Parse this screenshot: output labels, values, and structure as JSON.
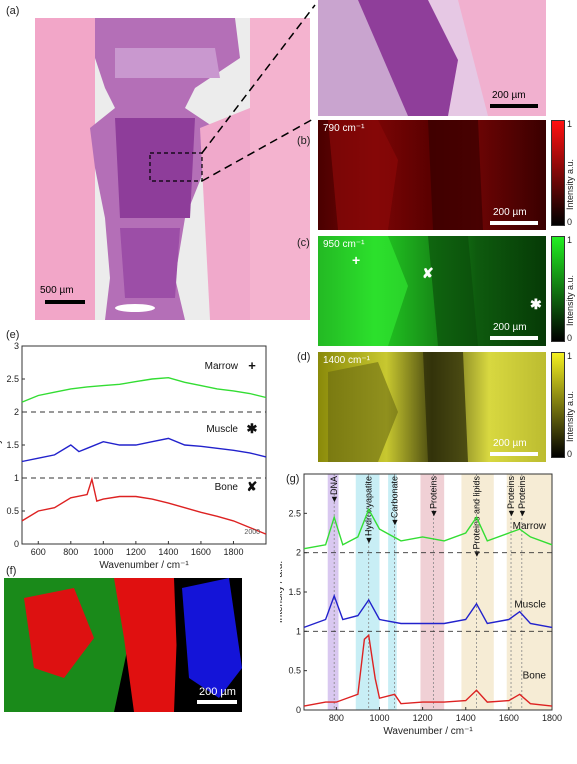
{
  "panel_labels": {
    "a": "(a)",
    "b": "(b)",
    "c": "(c)",
    "d": "(d)",
    "e": "(e)",
    "f": "(f)",
    "g": "(g)"
  },
  "scale_bars": {
    "a_main": "500 µm",
    "a_zoom": "200 µm",
    "b": "200 µm",
    "c": "200 µm",
    "d": "200 µm",
    "f": "200 µm"
  },
  "map_labels": {
    "b": "790 cm⁻¹",
    "c": "950 cm⁻¹",
    "d": "1400 cm⁻¹"
  },
  "colorbar": {
    "label": "Intensity a.u.",
    "max": "1",
    "min": "0",
    "colors": {
      "b": "#e00000",
      "c": "#22dd22",
      "d": "#e8e000"
    }
  },
  "markers": {
    "marrow": "+",
    "muscle": "✱",
    "bone": "✘"
  },
  "chart_data": [
    {
      "id": "e",
      "type": "line",
      "xlabel": "Wavenumber / cm⁻¹",
      "ylabel": "Intensity / a.u.",
      "xlim": [
        500,
        2000
      ],
      "ylim": [
        0,
        3
      ],
      "x_ticks": [
        "600",
        "800",
        "1000",
        "1200",
        "1400",
        "1600",
        "1800"
      ],
      "y_ticks": [
        "0",
        "0.5",
        "1",
        "1.5",
        "2",
        "2.5",
        "3"
      ],
      "offset_lines": [
        0,
        1,
        2
      ],
      "extra_tick": "2000",
      "series": [
        {
          "name": "Marrow",
          "color": "#33dd33",
          "x": [
            500,
            600,
            700,
            800,
            900,
            1000,
            1100,
            1200,
            1300,
            1400,
            1500,
            1600,
            1700,
            1800,
            1900,
            2000
          ],
          "y": [
            2.15,
            2.25,
            2.3,
            2.35,
            2.38,
            2.4,
            2.42,
            2.46,
            2.5,
            2.52,
            2.45,
            2.4,
            2.35,
            2.32,
            2.28,
            2.22
          ]
        },
        {
          "name": "Muscle",
          "color": "#2222cc",
          "x": [
            500,
            600,
            700,
            800,
            850,
            900,
            1000,
            1100,
            1200,
            1300,
            1400,
            1500,
            1600,
            1700,
            1800,
            1900,
            2000
          ],
          "y": [
            1.25,
            1.3,
            1.35,
            1.5,
            1.4,
            1.45,
            1.55,
            1.5,
            1.5,
            1.55,
            1.6,
            1.5,
            1.48,
            1.45,
            1.42,
            1.38,
            1.32
          ]
        },
        {
          "name": "Bone",
          "color": "#dd2222",
          "x": [
            500,
            600,
            700,
            800,
            900,
            930,
            960,
            1000,
            1100,
            1200,
            1300,
            1400,
            1500,
            1600,
            1700,
            1800,
            1900,
            2000
          ],
          "y": [
            0.35,
            0.5,
            0.55,
            0.7,
            0.75,
            0.98,
            0.65,
            0.68,
            0.72,
            0.72,
            0.68,
            0.62,
            0.55,
            0.48,
            0.42,
            0.35,
            0.25,
            0.15
          ]
        }
      ],
      "annotations": [
        "Marrow",
        "Muscle",
        "Bone"
      ]
    },
    {
      "id": "g",
      "type": "line",
      "xlabel": "Wavenumber / cm⁻¹",
      "ylabel": "Intensity / a.u.",
      "xlim": [
        650,
        1800
      ],
      "ylim": [
        0,
        3
      ],
      "x_ticks": [
        "800",
        "1000",
        "1200",
        "1400",
        "1600",
        "1800"
      ],
      "y_ticks": [
        "0",
        "0.5",
        "1",
        "1.5",
        "2",
        "2.5"
      ],
      "offset_lines": [
        0,
        1,
        2
      ],
      "bands": [
        {
          "label": "DNA",
          "x": [
            760,
            810
          ],
          "color": "#d9c8f0",
          "peak": 790
        },
        {
          "label": "Hydroxyapatite",
          "x": [
            890,
            1000
          ],
          "color": "#c8eef5",
          "peak": 950
        },
        {
          "label": "Carbonate",
          "x": [
            1040,
            1080
          ],
          "color": "#c8eef5",
          "peak": 1070
        },
        {
          "label": "Proteins",
          "x": [
            1190,
            1300
          ],
          "color": "#f0d0d5",
          "peak": 1250
        },
        {
          "label": "Proteins and lipids",
          "x": [
            1380,
            1530
          ],
          "color": "#f6ecd5",
          "peak": 1450
        },
        {
          "label": "Proteins",
          "x": [
            1590,
            1640
          ],
          "color": "#f6ecd5",
          "peak": 1610
        },
        {
          "label": "Proteins",
          "x": [
            1640,
            1800
          ],
          "color": "#f6ecd5",
          "peak": 1660
        }
      ],
      "series": [
        {
          "name": "Marrow",
          "color": "#33dd33",
          "x": [
            650,
            750,
            790,
            830,
            900,
            950,
            1000,
            1100,
            1200,
            1300,
            1400,
            1450,
            1500,
            1600,
            1650,
            1700,
            1800
          ],
          "y": [
            2.05,
            2.1,
            2.45,
            2.1,
            2.2,
            2.55,
            2.3,
            2.15,
            2.2,
            2.15,
            2.25,
            2.45,
            2.15,
            2.25,
            2.3,
            2.2,
            2.1
          ]
        },
        {
          "name": "Muscle",
          "color": "#2222cc",
          "x": [
            650,
            750,
            790,
            830,
            900,
            950,
            1000,
            1100,
            1200,
            1300,
            1400,
            1450,
            1500,
            1600,
            1650,
            1700,
            1800
          ],
          "y": [
            1.05,
            1.15,
            1.45,
            1.15,
            1.2,
            1.4,
            1.15,
            1.1,
            1.1,
            1.1,
            1.15,
            1.35,
            1.1,
            1.15,
            1.25,
            1.1,
            1.05
          ]
        },
        {
          "name": "Bone",
          "color": "#dd2222",
          "x": [
            650,
            750,
            800,
            900,
            930,
            950,
            980,
            1000,
            1070,
            1100,
            1200,
            1300,
            1400,
            1450,
            1500,
            1600,
            1650,
            1700,
            1800
          ],
          "y": [
            0.05,
            0.1,
            0.1,
            0.2,
            0.9,
            0.95,
            0.4,
            0.15,
            0.2,
            0.08,
            0.1,
            0.1,
            0.12,
            0.25,
            0.1,
            0.12,
            0.2,
            0.08,
            0.05
          ]
        }
      ],
      "annotations": [
        "Marrow",
        "Muscle",
        "Bone"
      ]
    }
  ]
}
